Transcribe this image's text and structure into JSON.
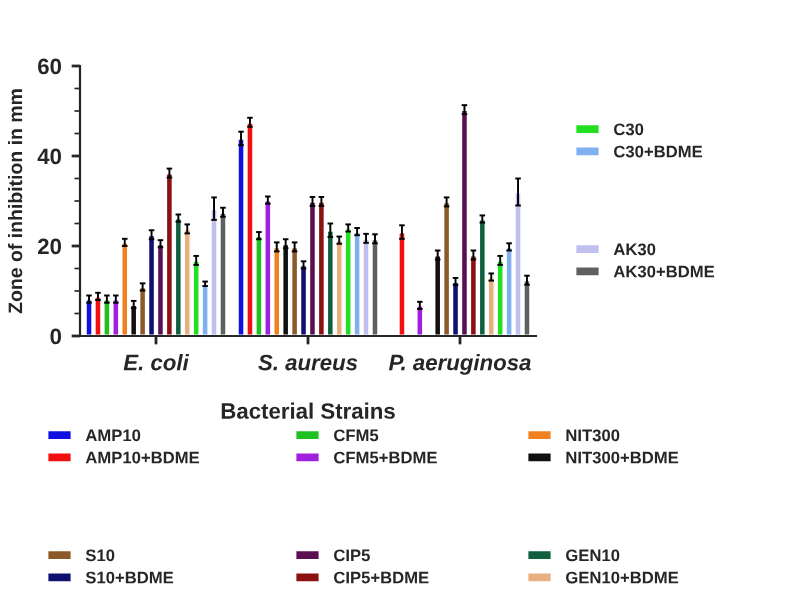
{
  "chart_data": {
    "type": "bar",
    "xlabel": "Bacterial Strains",
    "ylabel": "Zone of inhibition in mm",
    "categories": [
      "E. coli",
      "S. aureus",
      "P. aeruginosa"
    ],
    "ylim": [
      0,
      60
    ],
    "yticks": [
      0,
      20,
      40,
      60
    ],
    "grid": false,
    "legend": "bottom",
    "series": [
      {
        "name": "AMP10",
        "color": "#1010e0",
        "values": [
          8.2,
          43.9,
          null
        ],
        "errors": [
          0.8,
          1.5,
          null
        ]
      },
      {
        "name": "AMP10+BDME",
        "color": "#f01010",
        "values": [
          8.8,
          47.5,
          23.1
        ],
        "errors": [
          0.8,
          1,
          1.5
        ]
      },
      {
        "name": "CFM5",
        "color": "#20c020",
        "values": [
          8.2,
          22.3,
          null
        ],
        "errors": [
          0.8,
          0.8,
          null
        ]
      },
      {
        "name": "CFM5+BDME",
        "color": "#a020e0",
        "values": [
          8.2,
          30.2,
          6.8
        ],
        "errors": [
          0.8,
          0.8,
          0.8
        ]
      },
      {
        "name": "NIT300",
        "color": "#f08020",
        "values": [
          20.8,
          19.8,
          null
        ],
        "errors": [
          0.8,
          1,
          null
        ]
      },
      {
        "name": "NIT300+BDME",
        "color": "#101010",
        "values": [
          7.0,
          20.5,
          18.0
        ],
        "errors": [
          0.8,
          1,
          1
        ]
      },
      {
        "name": "S10",
        "color": "#8b5a2b",
        "values": [
          10.9,
          19.8,
          29.8
        ],
        "errors": [
          0.8,
          1,
          1
        ]
      },
      {
        "name": "S10+BDME",
        "color": "#101070",
        "values": [
          22.5,
          15.8,
          12.1
        ],
        "errors": [
          1,
          0.8,
          0.8
        ]
      },
      {
        "name": "CIP5",
        "color": "#5a1050",
        "values": [
          20.5,
          29.9,
          50.3
        ],
        "errors": [
          0.8,
          1,
          1
        ]
      },
      {
        "name": "CIP5+BDME",
        "color": "#8b1010",
        "values": [
          36.2,
          29.9,
          18.0
        ],
        "errors": [
          1,
          1,
          1
        ]
      },
      {
        "name": "GEN10",
        "color": "#106040",
        "values": [
          26.2,
          23.5,
          26.0
        ],
        "errors": [
          0.8,
          1.5,
          0.8
        ]
      },
      {
        "name": "GEN10+BDME",
        "color": "#e8b080",
        "values": [
          23.8,
          21.3,
          13.1
        ],
        "errors": [
          1,
          0.8,
          0.8
        ]
      },
      {
        "name": "C30",
        "color": "#20e020",
        "values": [
          16.8,
          24.0,
          16.8
        ],
        "errors": [
          1,
          0.8,
          1
        ]
      },
      {
        "name": "C30+BDME",
        "color": "#80b0f0",
        "values": [
          11.6,
          23.2,
          19.8
        ],
        "errors": [
          0.5,
          0.8,
          0.8
        ]
      },
      {
        "name": "AK30",
        "color": "#c0c0f0",
        "values": [
          28.3,
          21.7,
          32.0
        ],
        "errors": [
          2.5,
          1,
          3
        ]
      },
      {
        "name": "AK30+BDME",
        "color": "#606060",
        "values": [
          27.5,
          21.6,
          12.4
        ],
        "errors": [
          1,
          1,
          1
        ]
      }
    ]
  }
}
